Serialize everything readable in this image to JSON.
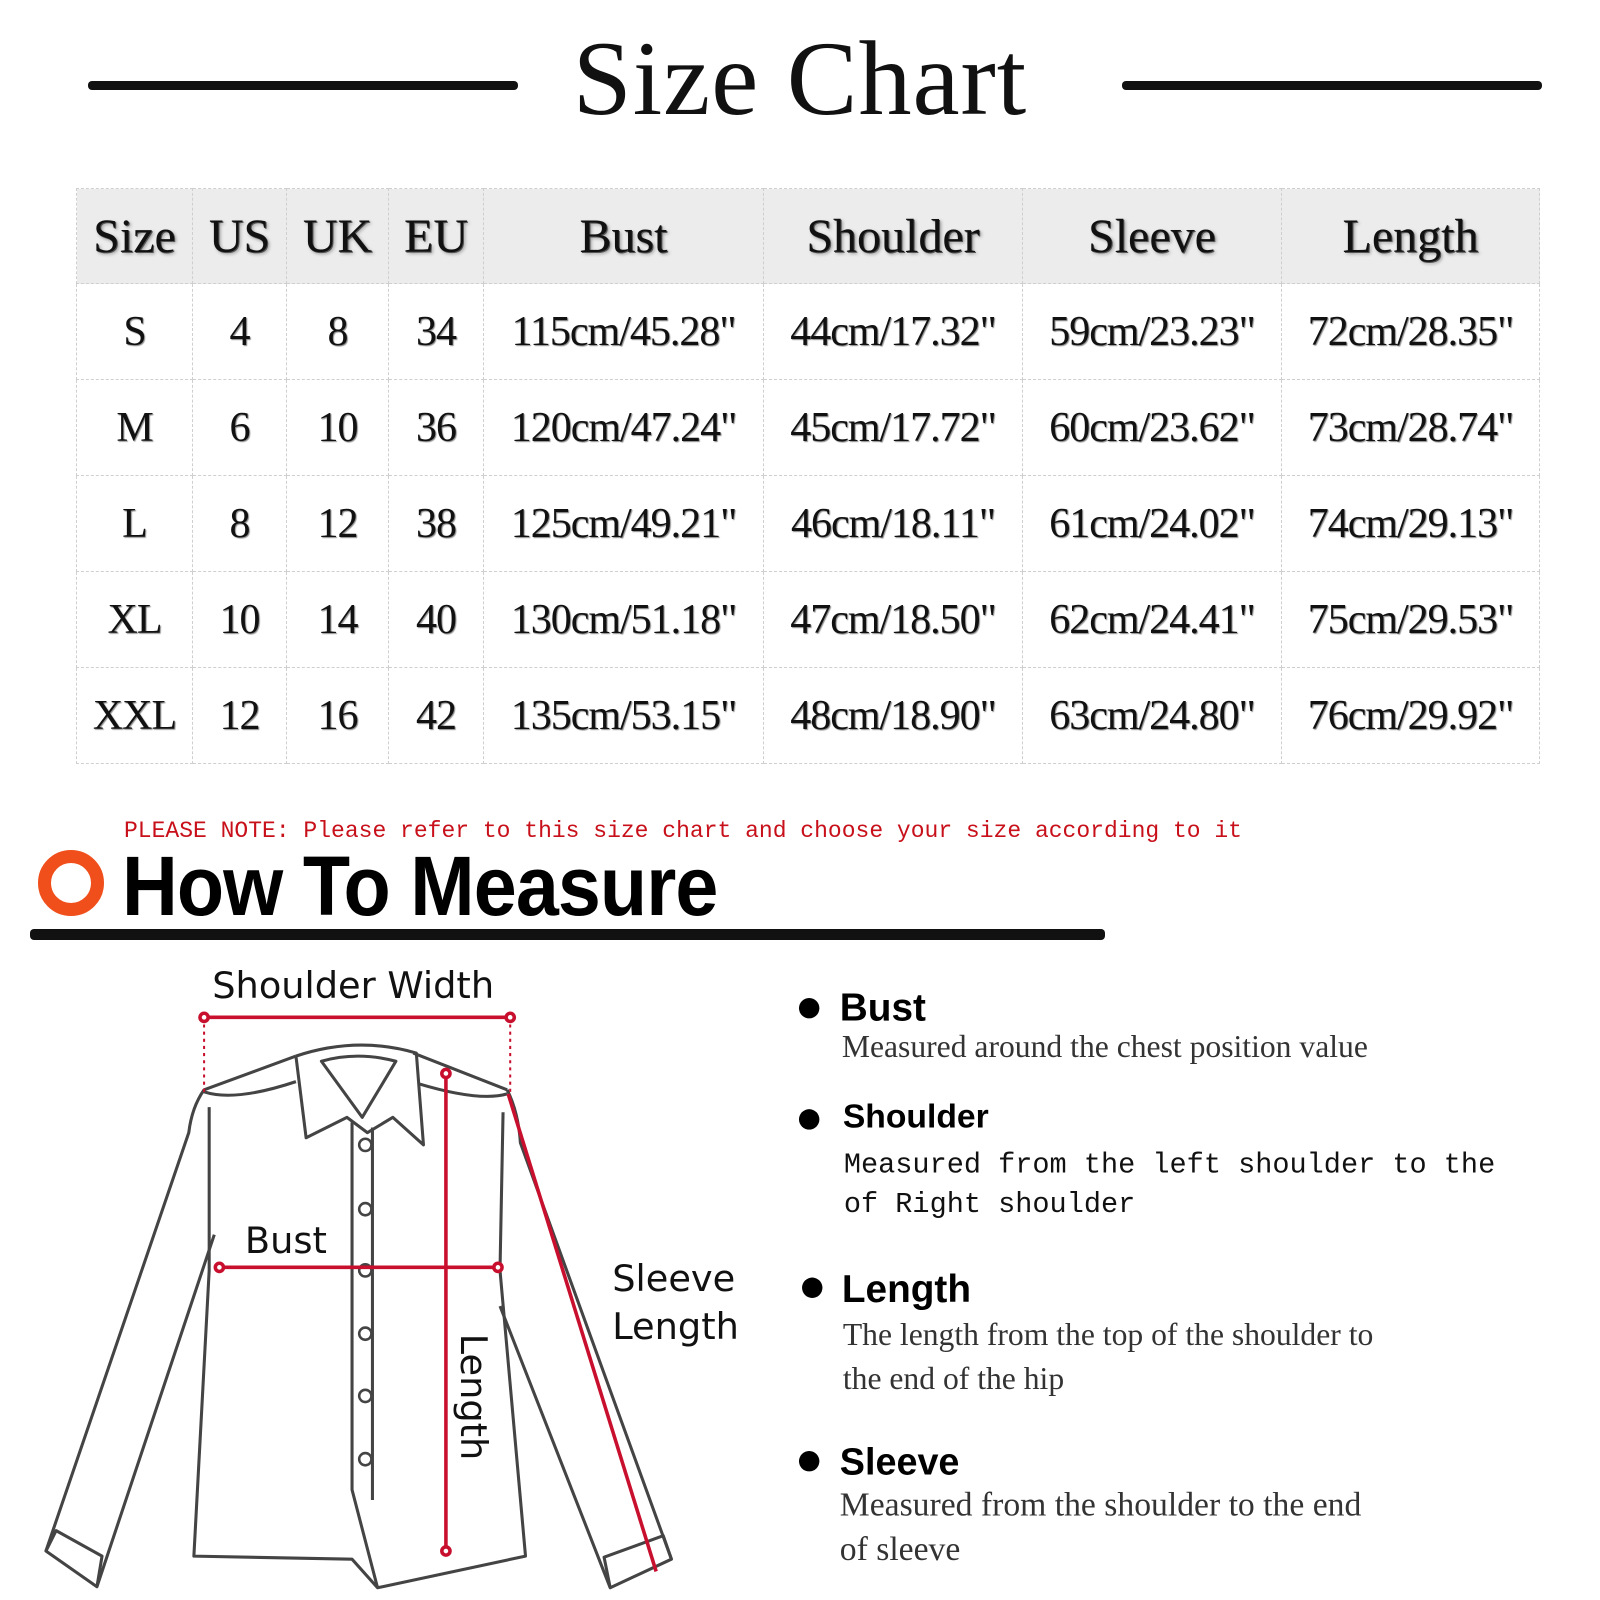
{
  "title": "Size Chart",
  "table": {
    "headers": [
      "Size",
      "US",
      "UK",
      "EU",
      "Bust",
      "Shoulder",
      "Sleeve",
      "Length"
    ],
    "rows": [
      [
        "S",
        "4",
        "8",
        "34",
        "115cm/45.28\"",
        "44cm/17.32\"",
        "59cm/23.23\"",
        "72cm/28.35\""
      ],
      [
        "M",
        "6",
        "10",
        "36",
        "120cm/47.24\"",
        "45cm/17.72\"",
        "60cm/23.62\"",
        "73cm/28.74\""
      ],
      [
        "L",
        "8",
        "12",
        "38",
        "125cm/49.21\"",
        "46cm/18.11\"",
        "61cm/24.02\"",
        "74cm/29.13\""
      ],
      [
        "XL",
        "10",
        "14",
        "40",
        "130cm/51.18\"",
        "47cm/18.50\"",
        "62cm/24.41\"",
        "75cm/29.53\""
      ],
      [
        "XXL",
        "12",
        "16",
        "42",
        "135cm/53.15\"",
        "48cm/18.90\"",
        "63cm/24.80\"",
        "76cm/29.92\""
      ]
    ]
  },
  "note": "PLEASE NOTE: Please refer to this size chart and choose your size according to it",
  "how_to": {
    "heading": "How To Measure",
    "accent_color": "#f04e1a",
    "measure_color": "#c8102e",
    "diagram_labels": {
      "shoulder_width": "Shoulder Width",
      "bust": "Bust",
      "sleeve_line1": "Sleeve",
      "sleeve_line2": "Length",
      "length": "Length"
    },
    "items": [
      {
        "title": "Bust",
        "lines": [
          "Measured around the chest position value"
        ]
      },
      {
        "title": "Shoulder",
        "lines": [
          "Measured from the left shoulder to the",
          "of Right shoulder"
        ]
      },
      {
        "title": "Length",
        "lines": [
          "The length from the top of the shoulder to",
          "the end of the hip"
        ]
      },
      {
        "title": "Sleeve",
        "lines": [
          "Measured from the shoulder to the end",
          "of sleeve"
        ]
      }
    ]
  }
}
